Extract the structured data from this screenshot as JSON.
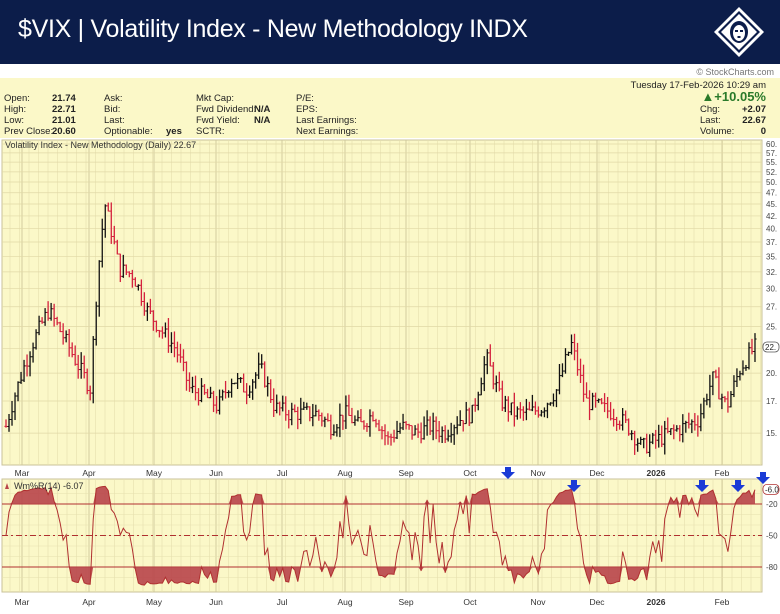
{
  "header": {
    "title": "$VIX | Volatility Index - New Methodology INDX",
    "logo_icon": "lion-diamond-logo-icon"
  },
  "credit": "© StockCharts.com",
  "quote": {
    "open_label": "Open:",
    "open": "21.74",
    "high_label": "High:",
    "high": "22.71",
    "low_label": "Low:",
    "low": "21.01",
    "prev_close_label": "Prev Close:",
    "prev_close": "20.60",
    "ask_label": "Ask:",
    "bid_label": "Bid:",
    "last_label_mid": "Last:",
    "optionable_label": "Optionable:",
    "optionable": "yes",
    "mkt_cap_label": "Mkt Cap:",
    "fwd_dividend_label": "Fwd Dividend:",
    "fwd_dividend": "N/A",
    "fwd_yield_label": "Fwd Yield:",
    "fwd_yield": "N/A",
    "sctr_label": "SCTR:",
    "pe_label": "P/E:",
    "eps_label": "EPS:",
    "last_earnings_label": "Last Earnings:",
    "next_earnings_label": "Next Earnings:",
    "datetime": "Tuesday  17-Feb-2026  10:29 am",
    "pct_change": "▲+10.05%",
    "chg_label": "Chg:",
    "chg": "+2.07",
    "last_label": "Last:",
    "last": "22.67",
    "volume_label": "Volume:",
    "volume": "0"
  },
  "colors": {
    "header_bg": "#0c1d4a",
    "panel_bg": "#fbf8c8",
    "up_bar": "#111111",
    "down_bar": "#d4213d",
    "wr_line": "#b03030",
    "wr_fill": "#b8444a",
    "arrow": "#1a3bd6",
    "positive": "#2a7a2a"
  },
  "chart_data": [
    {
      "type": "ohlc",
      "title": "Volatility Index - New Methodology (Daily) 22.67",
      "xlabel": "",
      "ylabel": "",
      "x_ticks": [
        "Mar",
        "Apr",
        "May",
        "Jun",
        "Jul",
        "Aug",
        "Sep",
        "Oct",
        "Nov",
        "Dec",
        "2026",
        "Feb"
      ],
      "y_ticks": [
        15,
        17.5,
        20,
        22.5,
        25,
        27.5,
        30,
        32.5,
        35,
        37.5,
        40,
        42.5,
        45,
        47.5,
        50,
        52.5,
        55,
        57.5,
        60
      ],
      "y_tick_labels": [
        "15.",
        "17.",
        "20.",
        "22.",
        "25.",
        "27.",
        "30.",
        "32.",
        "35.",
        "37.",
        "40.",
        "42.",
        "45.",
        "47.",
        "50.",
        "52.",
        "55.",
        "57.",
        "60."
      ],
      "ylim": [
        13,
        60
      ],
      "scale": "log",
      "grid": true,
      "last_value_tag": "22.",
      "approx_close_series": {
        "x": [
          "Feb-20",
          "Feb-27",
          "Mar-05",
          "Mar-12",
          "Mar-19",
          "Mar-26",
          "Apr-02",
          "Apr-07",
          "Apr-09",
          "Apr-16",
          "Apr-24",
          "May-01",
          "May-08",
          "May-15",
          "May-22",
          "May-30",
          "Jun-06",
          "Jun-13",
          "Jun-20",
          "Jun-27",
          "Jul-03",
          "Jul-11",
          "Jul-18",
          "Jul-25",
          "Aug-01",
          "Aug-08",
          "Aug-15",
          "Aug-22",
          "Aug-29",
          "Sep-05",
          "Sep-12",
          "Sep-19",
          "Sep-26",
          "Oct-03",
          "Oct-10",
          "Oct-17",
          "Oct-24",
          "Oct-31",
          "Nov-07",
          "Nov-14",
          "Nov-21",
          "Nov-28",
          "Dec-05",
          "Dec-12",
          "Dec-19",
          "Dec-26",
          "Jan-02",
          "Jan-09",
          "Jan-16",
          "Jan-23",
          "Jan-30",
          "Feb-06",
          "Feb-13",
          "Feb-17"
        ],
        "values": [
          15.5,
          19.5,
          23.5,
          27.0,
          24.0,
          21.0,
          18.5,
          45.0,
          33.0,
          32.0,
          27.0,
          24.5,
          22.5,
          18.5,
          18.0,
          17.0,
          19.5,
          18.5,
          20.5,
          17.0,
          16.5,
          16.5,
          16.5,
          15.5,
          16.5,
          15.5,
          16.5,
          14.5,
          15.5,
          15.0,
          15.5,
          15.0,
          16.0,
          16.5,
          21.5,
          17.5,
          16.5,
          16.5,
          17.0,
          18.5,
          23.0,
          17.5,
          17.0,
          16.5,
          15.5,
          14.0,
          14.5,
          15.0,
          15.5,
          16.0,
          19.5,
          17.0,
          20.6,
          22.67
        ]
      }
    },
    {
      "type": "line",
      "title": "Wm%R(14) -6.07",
      "y_ticks": [
        -20,
        -50,
        -80
      ],
      "y_tick_labels": [
        "-20",
        "-50",
        "-80"
      ],
      "ylim": [
        -100,
        0
      ],
      "reference_lines": [
        -20,
        -50,
        -80
      ],
      "last_value_tag": "-6.0",
      "x_ticks": [
        "Mar",
        "Apr",
        "May",
        "Jun",
        "Jul",
        "Aug",
        "Sep",
        "Oct",
        "Nov",
        "Dec",
        "2026",
        "Feb"
      ],
      "signal_arrows": [
        "mid-Oct",
        "mid-Nov",
        "early-Jan",
        "late-Jan",
        "mid-Feb"
      ]
    }
  ]
}
